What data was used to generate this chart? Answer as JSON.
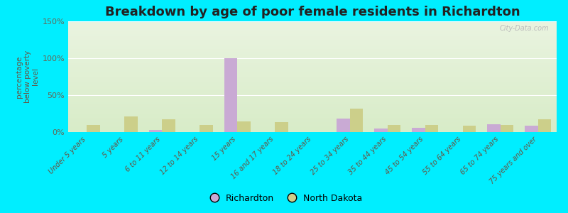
{
  "title": "Breakdown by age of poor female residents in Richardton",
  "ylabel": "percentage\nbelow poverty\nlevel",
  "categories": [
    "Under 5 years",
    "5 years",
    "6 to 11 years",
    "12 to 14 years",
    "15 years",
    "16 and 17 years",
    "18 to 24 years",
    "25 to 34 years",
    "35 to 44 years",
    "45 to 54 years",
    "55 to 64 years",
    "65 to 74 years",
    "75 years and over"
  ],
  "richardton_values": [
    0,
    0,
    3,
    0,
    100,
    0,
    0,
    18,
    5,
    6,
    0,
    11,
    9
  ],
  "nd_values": [
    10,
    21,
    17,
    10,
    14,
    13,
    0,
    32,
    10,
    10,
    9,
    10,
    17
  ],
  "richardton_color": "#c9aad4",
  "nd_color": "#cccf8a",
  "outer_bg_color": "#00eeff",
  "axis_bg_top": "#e8f0e0",
  "axis_bg_bottom": "#f4fae8",
  "ylim": [
    0,
    150
  ],
  "yticks": [
    0,
    50,
    100,
    150
  ],
  "ytick_labels": [
    "0%",
    "50%",
    "100%",
    "150%"
  ],
  "bar_width": 0.35,
  "title_fontsize": 13,
  "legend_richardton": "Richardton",
  "legend_nd": "North Dakota",
  "watermark": "City-Data.com"
}
